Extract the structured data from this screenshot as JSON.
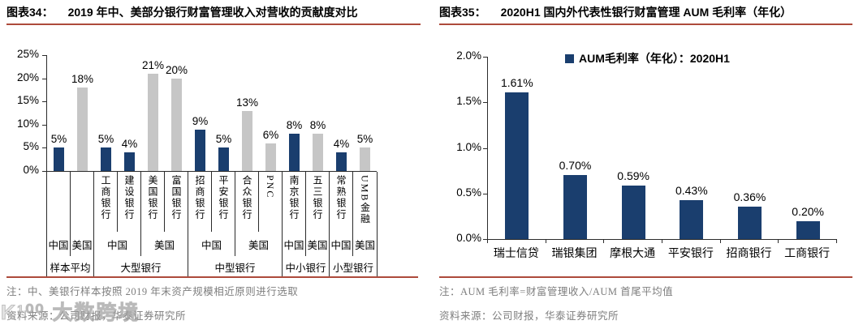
{
  "watermark": "K¹⁰⁰ 大数跨境",
  "colors": {
    "navy": "#1A3E6E",
    "gray": "#C6C6C6",
    "red_rule": "#AD4A3B",
    "axis": "#2B2B2B",
    "note_gray": "#7E7E7E"
  },
  "figures": [
    {
      "fig_label": "图表34：",
      "title": "2019 年中、美部分银行财富管理收入对营收的贡献度对比",
      "note": "注：中、美银行样本按照 2019 年末资产规模相近原则进行选取",
      "source": "资料来源：公司财报，华泰证券研究所"
    },
    {
      "fig_label": "图表35：",
      "title": "2020H1 国内外代表性银行财富管理 AUM 毛利率（年化）",
      "note": "注：AUM 毛利率=财富管理收入/AUM 首尾平均值",
      "source": "资料来源：公司财报，华泰证券研究所"
    }
  ],
  "chart_data": [
    {
      "type": "bar",
      "title": "2019 年中、美部分银行财富管理收入对营收的贡献度对比",
      "xlabel": "",
      "ylabel": "",
      "ylim": [
        0,
        25
      ],
      "yticks": [
        "25%",
        "20%",
        "15%",
        "10%",
        "5%",
        "0%"
      ],
      "grid": false,
      "legend_position": "none",
      "banks": [
        "",
        "",
        "工商银行",
        "建设银行",
        "美国银行",
        "富国银行",
        "招商银行",
        "平安银行",
        "合众银行",
        "PNC",
        "南京银行",
        "五三银行",
        "常熟银行",
        "UMB金融"
      ],
      "values": [
        5,
        18,
        5,
        4,
        21,
        20,
        9,
        5,
        13,
        6,
        8,
        8,
        4,
        5
      ],
      "labels": [
        "5%",
        "18%",
        "5%",
        "4%",
        "21%",
        "20%",
        "9%",
        "5%",
        "13%",
        "6%",
        "8%",
        "8%",
        "4%",
        "5%"
      ],
      "bar_colors": [
        "#1A3E6E",
        "#C6C6C6",
        "#1A3E6E",
        "#1A3E6E",
        "#C6C6C6",
        "#C6C6C6",
        "#1A3E6E",
        "#1A3E6E",
        "#C6C6C6",
        "#C6C6C6",
        "#1A3E6E",
        "#C6C6C6",
        "#1A3E6E",
        "#C6C6C6"
      ],
      "countries": [
        {
          "label": "中国",
          "span": 1
        },
        {
          "label": "美国",
          "span": 1
        },
        {
          "label": "中国",
          "span": 2
        },
        {
          "label": "美国",
          "span": 2
        },
        {
          "label": "中国",
          "span": 2
        },
        {
          "label": "美国",
          "span": 2
        },
        {
          "label": "中国",
          "span": 1
        },
        {
          "label": "美国",
          "span": 1
        },
        {
          "label": "中国",
          "span": 1
        },
        {
          "label": "美国",
          "span": 1
        }
      ],
      "groups": [
        {
          "label": "样本平均",
          "span": 2
        },
        {
          "label": "大型银行",
          "span": 4
        },
        {
          "label": "中型银行",
          "span": 4
        },
        {
          "label": "中小银行",
          "span": 2
        },
        {
          "label": "小型银行",
          "span": 2
        }
      ]
    },
    {
      "type": "bar",
      "title": "2020H1 国内外代表性银行财富管理 AUM 毛利率（年化）",
      "xlabel": "",
      "ylabel": "",
      "ylim": [
        0,
        2.0
      ],
      "yticks": [
        "2.0%",
        "1.5%",
        "1.0%",
        "0.5%",
        "0.0%"
      ],
      "grid": false,
      "legend": "AUM毛利率（年化）：2020H1",
      "legend_position": "top-center",
      "categories": [
        "瑞士信贷",
        "瑞银集团",
        "摩根大通",
        "平安银行",
        "招商银行",
        "工商银行"
      ],
      "values": [
        1.61,
        0.7,
        0.59,
        0.43,
        0.36,
        0.2
      ],
      "labels": [
        "1.61%",
        "0.70%",
        "0.59%",
        "0.43%",
        "0.36%",
        "0.20%"
      ],
      "bar_color": "#1A3E6E"
    }
  ]
}
